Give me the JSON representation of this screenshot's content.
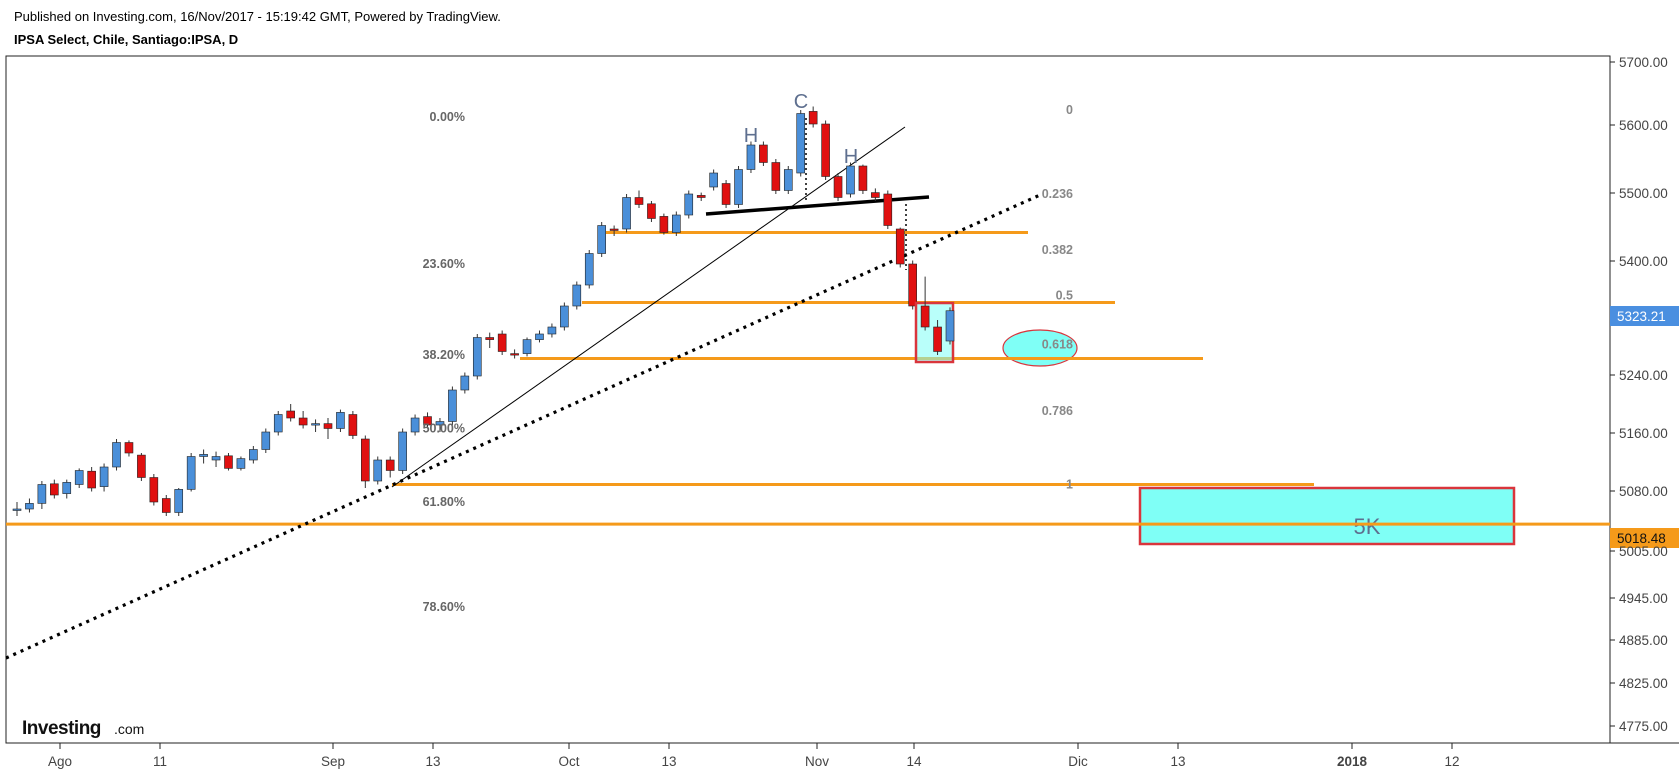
{
  "header": {
    "published": "Published on Investing.com, 16/Nov/2017 - 15:19:42 GMT, Powered by TradingView.",
    "symbol": "IPSA Select, Chile, Santiago:IPSA, D"
  },
  "logo": {
    "main": "Investing",
    "suffix": ".com"
  },
  "colors": {
    "up": "#4a8fd9",
    "down": "#e01010",
    "level": "#f59a1a",
    "zone": "#7ffff6",
    "zone_border": "#d9353c",
    "price_tag": "#4a8fe0"
  },
  "chart_data": {
    "type": "candlestick",
    "title": "IPSA Select, Chile, Santiago:IPSA, D",
    "x_ticks": [
      "Ago",
      "11",
      "Sep",
      "13",
      "Oct",
      "13",
      "Nov",
      "14",
      "Dic",
      "13",
      "2018",
      "12"
    ],
    "y_ticks": [
      "5700.00",
      "5600.00",
      "5500.00",
      "5400.00",
      "5323.21",
      "5240.00",
      "5160.00",
      "5080.00",
      "5018.48",
      "5005.00",
      "4945.00",
      "4885.00",
      "4825.00",
      "4775.00"
    ],
    "ylim": [
      4760,
      5700
    ],
    "current_price": "5323.21",
    "marked_level": "5018.48",
    "candles": [
      {
        "o": 5040,
        "h": 5050,
        "l": 5030,
        "c": 5040
      },
      {
        "o": 5040,
        "h": 5055,
        "l": 5035,
        "c": 5048
      },
      {
        "o": 5048,
        "h": 5080,
        "l": 5040,
        "c": 5075
      },
      {
        "o": 5076,
        "h": 5082,
        "l": 5055,
        "c": 5060
      },
      {
        "o": 5062,
        "h": 5082,
        "l": 5055,
        "c": 5078
      },
      {
        "o": 5075,
        "h": 5098,
        "l": 5070,
        "c": 5095
      },
      {
        "o": 5094,
        "h": 5100,
        "l": 5065,
        "c": 5070
      },
      {
        "o": 5072,
        "h": 5105,
        "l": 5065,
        "c": 5100
      },
      {
        "o": 5100,
        "h": 5140,
        "l": 5095,
        "c": 5135
      },
      {
        "o": 5135,
        "h": 5138,
        "l": 5115,
        "c": 5120
      },
      {
        "o": 5117,
        "h": 5120,
        "l": 5080,
        "c": 5085
      },
      {
        "o": 5085,
        "h": 5090,
        "l": 5045,
        "c": 5050
      },
      {
        "o": 5055,
        "h": 5060,
        "l": 5030,
        "c": 5035
      },
      {
        "o": 5035,
        "h": 5070,
        "l": 5030,
        "c": 5068
      },
      {
        "o": 5068,
        "h": 5120,
        "l": 5065,
        "c": 5115
      },
      {
        "o": 5115,
        "h": 5125,
        "l": 5105,
        "c": 5118
      },
      {
        "o": 5110,
        "h": 5122,
        "l": 5100,
        "c": 5115
      },
      {
        "o": 5116,
        "h": 5120,
        "l": 5095,
        "c": 5098
      },
      {
        "o": 5098,
        "h": 5115,
        "l": 5095,
        "c": 5112
      },
      {
        "o": 5110,
        "h": 5130,
        "l": 5105,
        "c": 5125
      },
      {
        "o": 5125,
        "h": 5155,
        "l": 5120,
        "c": 5150
      },
      {
        "o": 5150,
        "h": 5180,
        "l": 5145,
        "c": 5175
      },
      {
        "o": 5180,
        "h": 5190,
        "l": 5165,
        "c": 5170
      },
      {
        "o": 5170,
        "h": 5180,
        "l": 5155,
        "c": 5160
      },
      {
        "o": 5160,
        "h": 5168,
        "l": 5150,
        "c": 5162
      },
      {
        "o": 5162,
        "h": 5170,
        "l": 5140,
        "c": 5155
      },
      {
        "o": 5155,
        "h": 5182,
        "l": 5150,
        "c": 5178
      },
      {
        "o": 5175,
        "h": 5180,
        "l": 5140,
        "c": 5145
      },
      {
        "o": 5140,
        "h": 5145,
        "l": 5070,
        "c": 5080
      },
      {
        "o": 5080,
        "h": 5115,
        "l": 5075,
        "c": 5110
      },
      {
        "o": 5110,
        "h": 5115,
        "l": 5085,
        "c": 5095
      },
      {
        "o": 5095,
        "h": 5155,
        "l": 5090,
        "c": 5150
      },
      {
        "o": 5150,
        "h": 5175,
        "l": 5145,
        "c": 5170
      },
      {
        "o": 5172,
        "h": 5178,
        "l": 5155,
        "c": 5160
      },
      {
        "o": 5160,
        "h": 5170,
        "l": 5150,
        "c": 5165
      },
      {
        "o": 5165,
        "h": 5215,
        "l": 5160,
        "c": 5210
      },
      {
        "o": 5210,
        "h": 5235,
        "l": 5205,
        "c": 5230
      },
      {
        "o": 5230,
        "h": 5290,
        "l": 5225,
        "c": 5285
      },
      {
        "o": 5285,
        "h": 5292,
        "l": 5270,
        "c": 5282
      },
      {
        "o": 5290,
        "h": 5295,
        "l": 5260,
        "c": 5265
      },
      {
        "o": 5262,
        "h": 5268,
        "l": 5255,
        "c": 5260
      },
      {
        "o": 5262,
        "h": 5285,
        "l": 5258,
        "c": 5282
      },
      {
        "o": 5282,
        "h": 5295,
        "l": 5278,
        "c": 5290
      },
      {
        "o": 5290,
        "h": 5305,
        "l": 5285,
        "c": 5300
      },
      {
        "o": 5300,
        "h": 5335,
        "l": 5295,
        "c": 5330
      },
      {
        "o": 5330,
        "h": 5365,
        "l": 5325,
        "c": 5360
      },
      {
        "o": 5360,
        "h": 5410,
        "l": 5355,
        "c": 5405
      },
      {
        "o": 5405,
        "h": 5450,
        "l": 5400,
        "c": 5445
      },
      {
        "o": 5440,
        "h": 5445,
        "l": 5430,
        "c": 5438
      },
      {
        "o": 5440,
        "h": 5490,
        "l": 5435,
        "c": 5485
      },
      {
        "o": 5485,
        "h": 5495,
        "l": 5470,
        "c": 5475
      },
      {
        "o": 5476,
        "h": 5480,
        "l": 5450,
        "c": 5455
      },
      {
        "o": 5458,
        "h": 5462,
        "l": 5432,
        "c": 5435
      },
      {
        "o": 5435,
        "h": 5465,
        "l": 5430,
        "c": 5460
      },
      {
        "o": 5460,
        "h": 5495,
        "l": 5455,
        "c": 5490
      },
      {
        "o": 5488,
        "h": 5492,
        "l": 5480,
        "c": 5485
      },
      {
        "o": 5500,
        "h": 5525,
        "l": 5495,
        "c": 5520
      },
      {
        "o": 5505,
        "h": 5510,
        "l": 5470,
        "c": 5475
      },
      {
        "o": 5475,
        "h": 5530,
        "l": 5470,
        "c": 5525
      },
      {
        "o": 5525,
        "h": 5565,
        "l": 5520,
        "c": 5560
      },
      {
        "o": 5560,
        "h": 5565,
        "l": 5530,
        "c": 5535
      },
      {
        "o": 5535,
        "h": 5540,
        "l": 5490,
        "c": 5495
      },
      {
        "o": 5495,
        "h": 5530,
        "l": 5490,
        "c": 5525
      },
      {
        "o": 5520,
        "h": 5610,
        "l": 5515,
        "c": 5605
      },
      {
        "o": 5608,
        "h": 5615,
        "l": 5585,
        "c": 5590
      },
      {
        "o": 5590,
        "h": 5595,
        "l": 5510,
        "c": 5515
      },
      {
        "o": 5515,
        "h": 5520,
        "l": 5480,
        "c": 5485
      },
      {
        "o": 5490,
        "h": 5535,
        "l": 5485,
        "c": 5530
      },
      {
        "o": 5530,
        "h": 5532,
        "l": 5490,
        "c": 5495
      },
      {
        "o": 5492,
        "h": 5498,
        "l": 5480,
        "c": 5485
      },
      {
        "o": 5490,
        "h": 5495,
        "l": 5440,
        "c": 5445
      },
      {
        "o": 5440,
        "h": 5442,
        "l": 5385,
        "c": 5390
      },
      {
        "o": 5390,
        "h": 5395,
        "l": 5325,
        "c": 5330
      },
      {
        "o": 5330,
        "h": 5372,
        "l": 5295,
        "c": 5300
      },
      {
        "o": 5300,
        "h": 5310,
        "l": 5260,
        "c": 5265
      },
      {
        "o": 5280,
        "h": 5328,
        "l": 5275,
        "c": 5323.21
      }
    ],
    "fib_left": {
      "labels": [
        "0.00%",
        "23.60%",
        "38.20%",
        "50.00%",
        "61.80%",
        "78.60%"
      ],
      "values": [
        5600,
        5390,
        5260,
        5155,
        5050,
        4900
      ]
    },
    "fib_right": {
      "labels": [
        "0",
        "0.236",
        "0.382",
        "0.5",
        "0.618",
        "0.786",
        "1"
      ],
      "values": [
        5610,
        5490,
        5410,
        5345,
        5275,
        5180,
        5075
      ]
    },
    "levels": [
      5435,
      5335,
      5255,
      5075,
      5018.48
    ],
    "annotations": [
      "C",
      "H",
      "H",
      "5K"
    ]
  }
}
